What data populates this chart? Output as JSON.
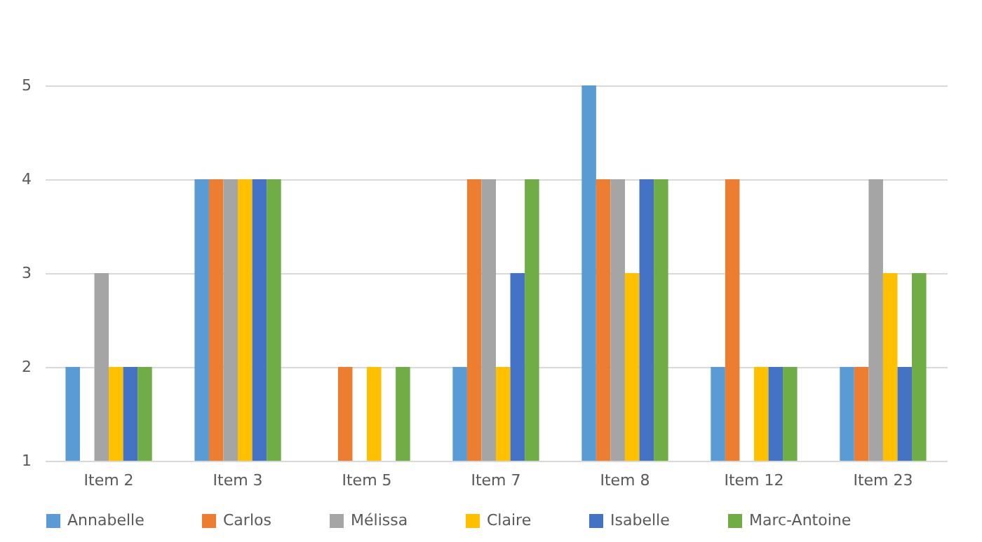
{
  "chart_data": {
    "type": "bar",
    "categories": [
      "Item 2",
      "Item 3",
      "Item 5",
      "Item 7",
      "Item 8",
      "Item 12",
      "Item 23"
    ],
    "series": [
      {
        "name": "Annabelle",
        "color": "#5b9bd5",
        "values": [
          2,
          4,
          null,
          2,
          5,
          2,
          2
        ]
      },
      {
        "name": "Carlos",
        "color": "#ed7d31",
        "values": [
          null,
          4,
          2,
          4,
          4,
          4,
          2
        ]
      },
      {
        "name": "Mélissa",
        "color": "#a5a5a5",
        "values": [
          3,
          4,
          null,
          4,
          4,
          null,
          4
        ]
      },
      {
        "name": "Claire",
        "color": "#ffc000",
        "values": [
          2,
          4,
          2,
          2,
          3,
          2,
          3
        ]
      },
      {
        "name": "Isabelle",
        "color": "#4472c4",
        "values": [
          2,
          4,
          null,
          3,
          4,
          2,
          2
        ]
      },
      {
        "name": "Marc-Antoine",
        "color": "#70ad47",
        "values": [
          2,
          4,
          2,
          4,
          4,
          2,
          3
        ]
      }
    ],
    "ylim": [
      1,
      5
    ],
    "yticks": [
      1,
      2,
      3,
      4,
      5
    ],
    "grid": "y",
    "legend": "bottom"
  }
}
